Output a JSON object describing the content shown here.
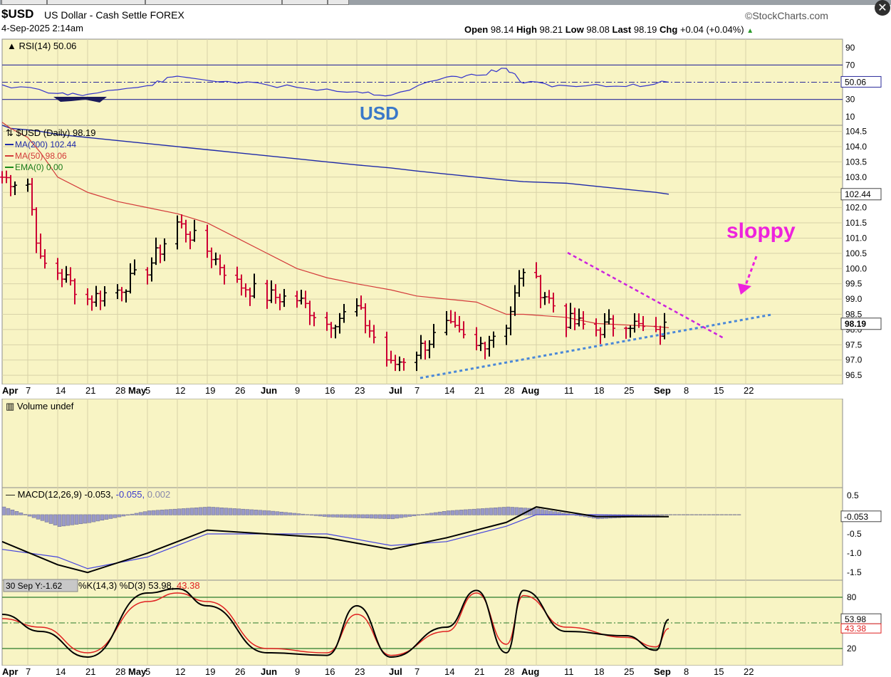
{
  "header": {
    "ticker": "$USD",
    "description": "US Dollar - Cash Settle FOREX",
    "date": "4-Sep-2025 2:14am",
    "brand": "©StockCharts.com",
    "ohlc": {
      "open_label": "Open",
      "open": "98.14",
      "high_label": "High",
      "high": "98.21",
      "low_label": "Low",
      "low": "98.08",
      "last_label": "Last",
      "last": "98.19",
      "chg_label": "Chg",
      "chg": "+0.04 (+0.04%)",
      "chg_arrow": "▲"
    },
    "close_icon": "close-icon"
  },
  "colors": {
    "panel_bg": "#f8f4c4",
    "ma200": "#1f2aa8",
    "ma50": "#d33a3a",
    "down_bar": "#cc0033",
    "up_bar": "#000000",
    "trend_blue": "#4a88d8",
    "trend_magenta": "#cc22dd",
    "annot_magenta": "#ee22dd",
    "usd_label": "#3a78c9",
    "rsi_line": "#3333cc",
    "grid": "#d8d2a8"
  },
  "annotations": {
    "usd": "USD",
    "sloppy": "sloppy"
  },
  "rsi_panel": {
    "legend": "RSI(14) 50.06",
    "ticks": [
      "90",
      "70",
      "50",
      "30",
      "10"
    ],
    "current": "50.06"
  },
  "price_panel": {
    "legend_main": "$USD (Daily) 98.19",
    "legend_ma200": "MA(200) 102.44",
    "legend_ma50": "MA(50) 98.06",
    "legend_ema": "EMA(0) 0.00",
    "ma200_current": "102.44",
    "last_current": "98.19"
  },
  "volume_panel": {
    "legend": "Volume undef"
  },
  "macd_panel": {
    "legend_head": "MACD(12,26,9)",
    "legend_macd": "-0.053,",
    "legend_signal": "-0.055,",
    "legend_hist": "0.002",
    "ticks": [
      "0.5",
      "-0.5",
      "-1.0",
      "-1.5"
    ],
    "current": "-0.053"
  },
  "stoch_panel": {
    "legend_head": "%K(14,3) %D(3)",
    "legend_k": "53.98,",
    "legend_d": "43.38",
    "tooltip": "30 Sep Y:-1.62",
    "ticks": [
      "80",
      "20"
    ],
    "current_k": "53.98",
    "current_d": "43.38"
  },
  "date_axis": {
    "labels": [
      "Apr",
      "7",
      "14",
      "21",
      "28",
      "May",
      "5",
      "12",
      "19",
      "26",
      "Jun",
      "9",
      "16",
      "23",
      "Jul",
      "7",
      "14",
      "21",
      "28",
      "Aug",
      "11",
      "18",
      "25",
      "Sep",
      "8",
      "15",
      "22"
    ],
    "bold": [
      "Apr",
      "May",
      "Jun",
      "Jul",
      "Aug",
      "Sep"
    ]
  },
  "chart_data": [
    {
      "type": "line",
      "title": "RSI(14)",
      "ylim": [
        0,
        100
      ],
      "reference_lines": [
        70,
        50,
        30
      ],
      "x": [
        "2025-04-01",
        "2025-04-14",
        "2025-04-21",
        "2025-05-05",
        "2025-05-12",
        "2025-05-26",
        "2025-06-09",
        "2025-06-23",
        "2025-07-01",
        "2025-07-14",
        "2025-07-21",
        "2025-07-28",
        "2025-08-01",
        "2025-08-11",
        "2025-08-25",
        "2025-09-04"
      ],
      "series": [
        {
          "name": "RSI(14)",
          "values": [
            47,
            37,
            36,
            46,
            57,
            49,
            44,
            39,
            35,
            56,
            58,
            66,
            49,
            46,
            45,
            50.06
          ]
        }
      ]
    },
    {
      "type": "line",
      "title": "$USD (Daily) 98.19",
      "ylim": [
        96.2,
        104.7
      ],
      "x": [
        "2025-04-01",
        "2025-04-03",
        "2025-04-07",
        "2025-04-10",
        "2025-04-14",
        "2025-04-21",
        "2025-04-28",
        "2025-05-05",
        "2025-05-12",
        "2025-05-19",
        "2025-05-26",
        "2025-06-02",
        "2025-06-09",
        "2025-06-16",
        "2025-06-23",
        "2025-07-01",
        "2025-07-07",
        "2025-07-14",
        "2025-07-21",
        "2025-07-28",
        "2025-08-01",
        "2025-08-11",
        "2025-08-18",
        "2025-08-25",
        "2025-09-01",
        "2025-09-04"
      ],
      "series": [
        {
          "name": "$USD (Daily)",
          "values": [
            103.0,
            102.9,
            102.8,
            100.2,
            99.9,
            99.0,
            99.3,
            100.0,
            101.5,
            100.6,
            99.5,
            99.1,
            99.0,
            98.2,
            98.7,
            96.8,
            97.3,
            98.1,
            97.4,
            98.2,
            100.0,
            98.3,
            98.0,
            98.3,
            97.8,
            98.19
          ]
        },
        {
          "name": "MA(200)",
          "values": [
            104.7,
            104.6,
            104.55,
            104.5,
            104.4,
            104.3,
            104.2,
            104.1,
            104.0,
            103.9,
            103.8,
            103.7,
            103.6,
            103.5,
            103.4,
            103.3,
            103.2,
            103.1,
            103.0,
            102.9,
            102.85,
            102.8,
            102.7,
            102.6,
            102.5,
            102.44
          ]
        },
        {
          "name": "MA(50)",
          "values": [
            104.8,
            104.6,
            104.3,
            103.8,
            103.0,
            102.5,
            102.2,
            102.0,
            101.8,
            101.5,
            101.0,
            100.5,
            100.0,
            99.7,
            99.5,
            99.3,
            99.1,
            99.0,
            98.9,
            98.5,
            98.5,
            98.4,
            98.2,
            98.15,
            98.1,
            98.06
          ]
        }
      ],
      "annotations": [
        "USD",
        "sloppy"
      ]
    },
    {
      "type": "line",
      "title": "MACD(12,26,9)",
      "ylim": [
        -1.7,
        0.7
      ],
      "x": [
        "2025-04-01",
        "2025-04-14",
        "2025-04-21",
        "2025-05-05",
        "2025-05-19",
        "2025-06-02",
        "2025-06-16",
        "2025-07-01",
        "2025-07-14",
        "2025-07-28",
        "2025-08-04",
        "2025-08-18",
        "2025-09-04"
      ],
      "series": [
        {
          "name": "MACD",
          "values": [
            -0.7,
            -1.3,
            -1.5,
            -1.0,
            -0.4,
            -0.5,
            -0.6,
            -0.9,
            -0.6,
            -0.2,
            0.2,
            -0.05,
            -0.053
          ]
        },
        {
          "name": "Signal",
          "values": [
            -0.9,
            -1.1,
            -1.4,
            -1.1,
            -0.5,
            -0.5,
            -0.5,
            -0.8,
            -0.7,
            -0.3,
            0.0,
            0.0,
            -0.055
          ]
        },
        {
          "name": "Histogram",
          "values": [
            0.2,
            -0.3,
            -0.2,
            0.1,
            0.2,
            0.1,
            -0.05,
            -0.1,
            0.1,
            0.2,
            0.15,
            -0.1,
            0.002
          ]
        }
      ]
    },
    {
      "type": "line",
      "title": "%K(14,3) %D(3)",
      "ylim": [
        0,
        100
      ],
      "reference_lines": [
        80,
        50,
        20
      ],
      "x": [
        "2025-04-01",
        "2025-04-10",
        "2025-04-21",
        "2025-05-05",
        "2025-05-12",
        "2025-05-19",
        "2025-06-02",
        "2025-06-16",
        "2025-06-23",
        "2025-07-01",
        "2025-07-14",
        "2025-07-21",
        "2025-07-28",
        "2025-08-01",
        "2025-08-11",
        "2025-08-25",
        "2025-09-01",
        "2025-09-04"
      ],
      "series": [
        {
          "name": "%K",
          "values": [
            60,
            40,
            10,
            85,
            90,
            70,
            15,
            12,
            70,
            10,
            45,
            88,
            15,
            88,
            40,
            35,
            18,
            53.98
          ]
        },
        {
          "name": "%D",
          "values": [
            55,
            45,
            15,
            75,
            85,
            75,
            20,
            15,
            60,
            12,
            40,
            85,
            25,
            82,
            45,
            33,
            22,
            43.38
          ]
        }
      ]
    }
  ]
}
